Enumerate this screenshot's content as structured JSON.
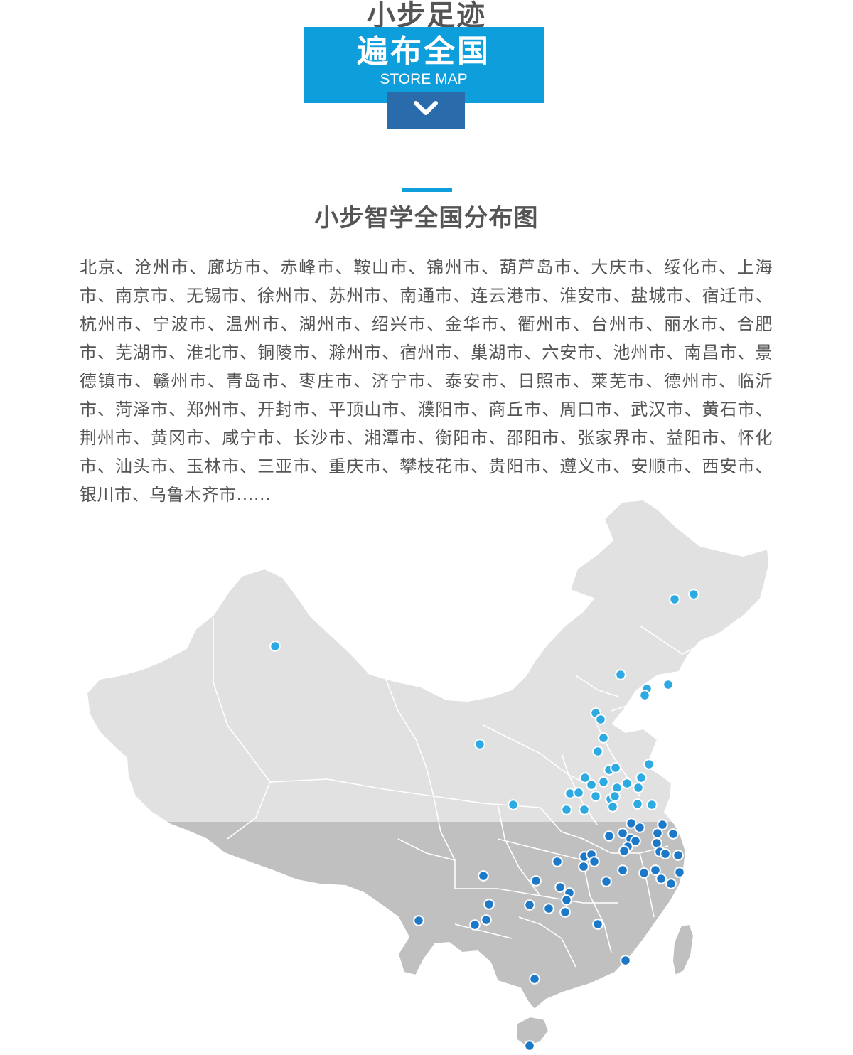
{
  "hero": {
    "line1": "小步足迹",
    "line2": "遍布全国",
    "subtitle": "STORE MAP",
    "arrow_icon": "chevron-down-icon"
  },
  "section": {
    "title": "小步智学全国分布图",
    "cities_text": "北京、沧州市、廊坊市、赤峰市、鞍山市、锦州市、葫芦岛市、大庆市、绥化市、上海市、南京市、无锡市、徐州市、苏州市、南通市、连云港市、淮安市、盐城市、宿迁市、杭州市、宁波市、温州市、湖州市、绍兴市、金华市、衢州市、台州市、丽水市、合肥市、芜湖市、淮北市、铜陵市、滁州市、宿州市、巢湖市、六安市、池州市、南昌市、景德镇市、赣州市、青岛市、枣庄市、济宁市、泰安市、日照市、莱芜市、德州市、临沂市、菏泽市、郑州市、开封市、平顶山市、濮阳市、商丘市、周口市、武汉市、黄石市、荆州市、黄冈市、咸宁市、长沙市、湘潭市、衡阳市、邵阳市、张家界市、益阳市、怀化市、汕头市、玉林市、三亚市、重庆市、攀枝花市、贵阳市、遵义市、安顺市、西安市、银川市、乌鲁木齐市......"
  },
  "map": {
    "colors": {
      "land_north": "#e1e1e1",
      "land_south": "#c0c0c0",
      "border": "#ffffff",
      "marker_north": "#2eaae2",
      "marker_south": "#1b79c8"
    }
  }
}
